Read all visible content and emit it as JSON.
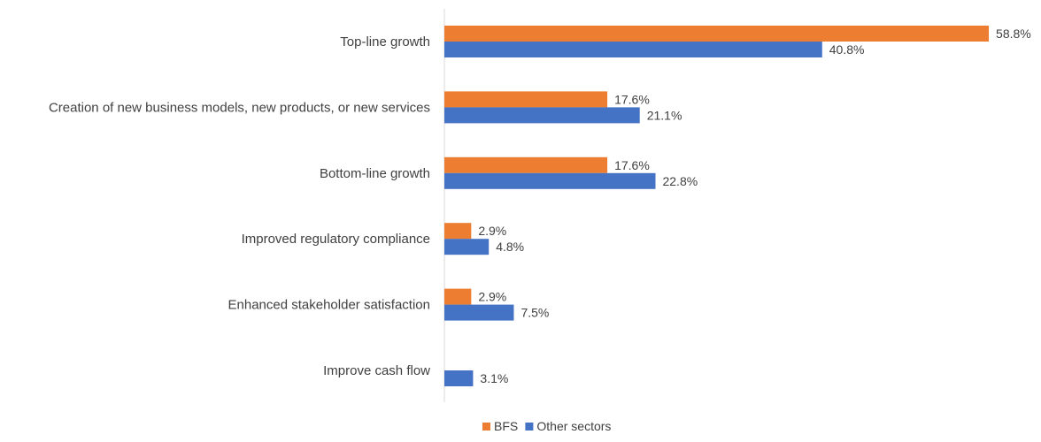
{
  "chart_data": {
    "type": "bar",
    "orientation": "horizontal",
    "categories": [
      "Top-line growth",
      "Creation of new business models, new products, or new services",
      "Bottom-line growth",
      "Improved regulatory compliance",
      "Enhanced stakeholder satisfaction",
      "Improve cash flow"
    ],
    "series": [
      {
        "name": "BFS",
        "color": "#ED7D31",
        "values": [
          58.8,
          17.6,
          17.6,
          2.9,
          2.9,
          null
        ],
        "labels": [
          "58.8%",
          "17.6%",
          "17.6%",
          "2.9%",
          "2.9%",
          ""
        ]
      },
      {
        "name": "Other sectors",
        "color": "#4472C4",
        "values": [
          40.8,
          21.1,
          22.8,
          4.8,
          7.5,
          3.1
        ],
        "labels": [
          "40.8%",
          "21.1%",
          "22.8%",
          "4.8%",
          "7.5%",
          "3.1%"
        ]
      }
    ],
    "xlim": [
      0,
      60
    ],
    "grid": false,
    "legend_position": "bottom",
    "title": "",
    "xlabel": "",
    "ylabel": ""
  }
}
